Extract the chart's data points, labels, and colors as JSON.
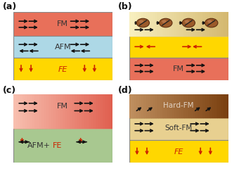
{
  "a_layers": [
    {
      "label": "FM",
      "color": "#E8705A",
      "ymin": 0.655,
      "ymax": 1.0,
      "text_color": "#333333"
    },
    {
      "label": "AFM",
      "color": "#ADD8E6",
      "ymin": 0.33,
      "ymax": 0.655,
      "text_color": "#333333"
    },
    {
      "label": "FE",
      "color": "#FFD700",
      "ymin": 0.0,
      "ymax": 0.33,
      "text_color": "#CC2200"
    }
  ],
  "b_layers": [
    {
      "label": "",
      "color": "#F0E0A0",
      "ymin": 0.655,
      "ymax": 1.0,
      "has_circles": true
    },
    {
      "label": "",
      "color": "#FFD700",
      "ymin": 0.33,
      "ymax": 0.655,
      "red_arrows": true
    },
    {
      "label": "FM",
      "color": "#E8705A",
      "ymin": 0.0,
      "ymax": 0.33,
      "text_color": "#333333"
    }
  ],
  "c_layers": [
    {
      "label": "FM",
      "color": "#E8705A",
      "ymin": 0.5,
      "ymax": 1.0,
      "text_color": "#333333"
    },
    {
      "label": "AFM+FE",
      "color": "#A8C890",
      "ymin": 0.0,
      "ymax": 0.5,
      "text_color": "#333333"
    }
  ],
  "d_layers": [
    {
      "label": "Hard-FM",
      "color": "#8B5020",
      "ymin": 0.66,
      "ymax": 1.0,
      "text_color": "#E0D0C0"
    },
    {
      "label": "Soft-FM",
      "color": "#E8D090",
      "ymin": 0.33,
      "ymax": 0.66,
      "text_color": "#333333"
    },
    {
      "label": "FE",
      "color": "#FFD700",
      "ymin": 0.0,
      "ymax": 0.33,
      "text_color": "#CC2200"
    }
  ],
  "arrow_black": "#111111",
  "arrow_red": "#CC2200",
  "fig_bg": "#FFFFFF",
  "border_color": "#888888"
}
